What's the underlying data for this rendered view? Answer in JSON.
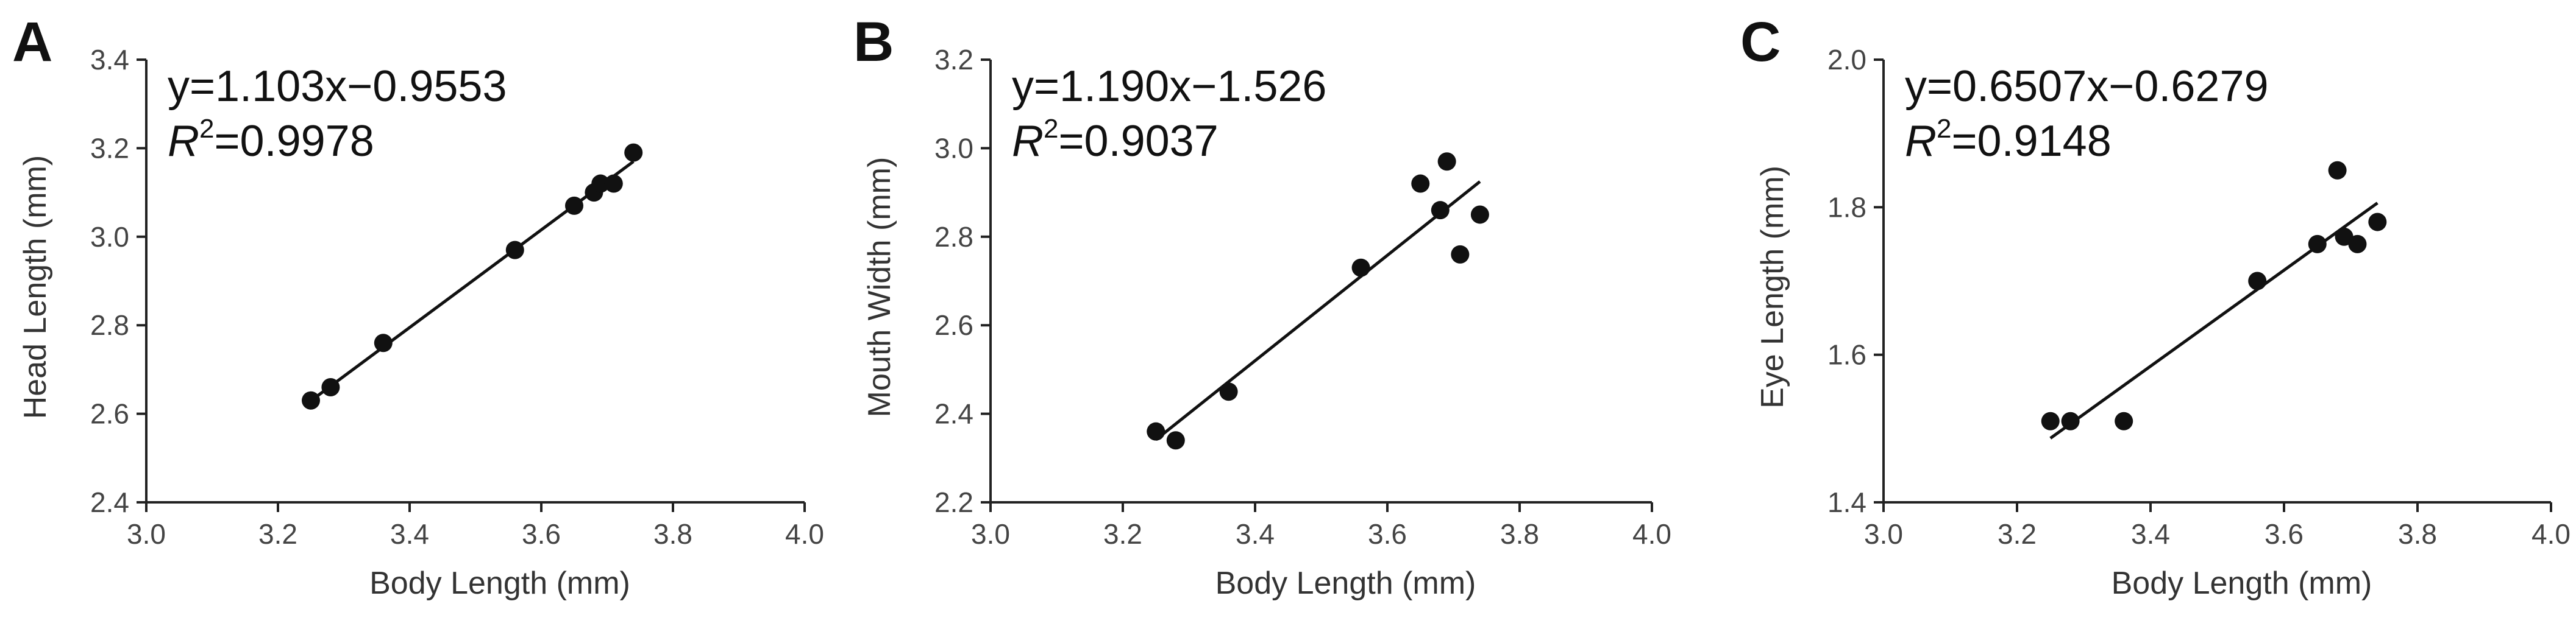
{
  "chart_data": [
    {
      "type": "scatter",
      "panel_label": "A",
      "xlabel": "Body Length (mm)",
      "ylabel": "Head Length (mm)",
      "xlim": [
        3.0,
        4.0
      ],
      "ylim": [
        2.4,
        3.4
      ],
      "xticks": [
        "3.0",
        "3.2",
        "3.4",
        "3.6",
        "3.8",
        "4.0"
      ],
      "yticks": [
        "2.4",
        "2.6",
        "2.8",
        "3.0",
        "3.2",
        "3.4"
      ],
      "equation": "y=1.103x−0.9553",
      "r2_label": "R",
      "r2_value": "=0.9978",
      "fit": {
        "slope": 1.103,
        "intercept": -0.9553,
        "x_range": [
          3.25,
          3.74
        ]
      },
      "points": [
        [
          3.25,
          2.63
        ],
        [
          3.28,
          2.66
        ],
        [
          3.36,
          2.76
        ],
        [
          3.56,
          2.97
        ],
        [
          3.65,
          3.07
        ],
        [
          3.68,
          3.1
        ],
        [
          3.69,
          3.12
        ],
        [
          3.71,
          3.12
        ],
        [
          3.74,
          3.19
        ]
      ]
    },
    {
      "type": "scatter",
      "panel_label": "B",
      "xlabel": "Body Length (mm)",
      "ylabel": "Mouth Width (mm)",
      "xlim": [
        3.0,
        4.0
      ],
      "ylim": [
        2.2,
        3.2
      ],
      "xticks": [
        "3.0",
        "3.2",
        "3.4",
        "3.6",
        "3.8",
        "4.0"
      ],
      "yticks": [
        "2.2",
        "2.4",
        "2.6",
        "2.8",
        "3.0",
        "3.2"
      ],
      "equation": "y=1.190x−1.526",
      "r2_label": "R",
      "r2_value": "=0.9037",
      "fit": {
        "slope": 1.19,
        "intercept": -1.526,
        "x_range": [
          3.25,
          3.74
        ]
      },
      "points": [
        [
          3.25,
          2.36
        ],
        [
          3.28,
          2.34
        ],
        [
          3.36,
          2.45
        ],
        [
          3.56,
          2.73
        ],
        [
          3.65,
          2.92
        ],
        [
          3.68,
          2.86
        ],
        [
          3.69,
          2.97
        ],
        [
          3.71,
          2.76
        ],
        [
          3.74,
          2.85
        ]
      ]
    },
    {
      "type": "scatter",
      "panel_label": "C",
      "xlabel": "Body Length (mm)",
      "ylabel": "Eye Length (mm)",
      "xlim": [
        3.0,
        4.0
      ],
      "ylim": [
        1.4,
        2.0
      ],
      "xticks": [
        "3.0",
        "3.2",
        "3.4",
        "3.6",
        "3.8",
        "4.0"
      ],
      "yticks": [
        "1.4",
        "1.6",
        "1.8",
        "2.0"
      ],
      "equation": "y=0.6507x−0.6279",
      "r2_label": "R",
      "r2_value": "=0.9148",
      "fit": {
        "slope": 0.6507,
        "intercept": -0.6279,
        "x_range": [
          3.25,
          3.74
        ]
      },
      "points": [
        [
          3.25,
          1.51
        ],
        [
          3.28,
          1.51
        ],
        [
          3.36,
          1.51
        ],
        [
          3.56,
          1.7
        ],
        [
          3.65,
          1.75
        ],
        [
          3.68,
          1.85
        ],
        [
          3.69,
          1.76
        ],
        [
          3.71,
          1.75
        ],
        [
          3.74,
          1.78
        ]
      ]
    }
  ]
}
